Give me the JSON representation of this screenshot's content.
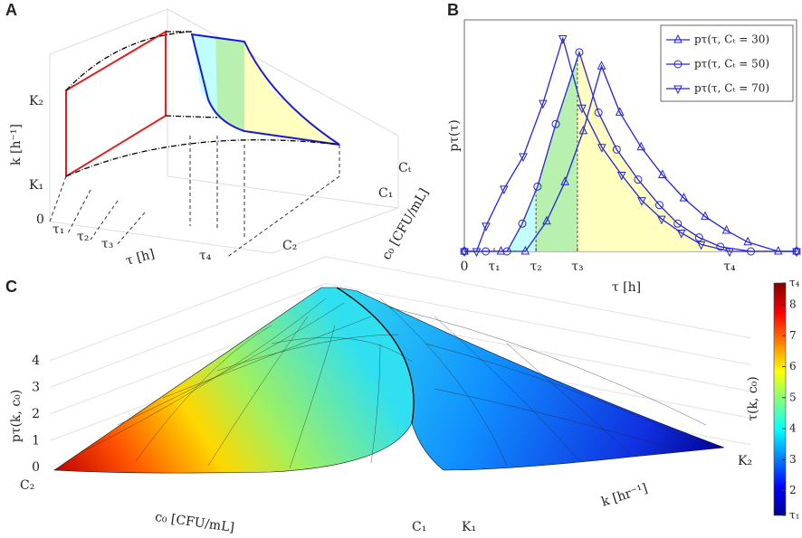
{
  "chart_data": [
    {
      "type": "diagram3d",
      "label": "A",
      "zlabel": "k [h⁻¹]",
      "ztick_labels": [
        "K₁",
        "K₂"
      ],
      "xlabel": "τ [h]",
      "xtick_labels": [
        "0",
        "τ₁",
        "τ₂",
        "τ₃",
        "τ₄"
      ],
      "ylabel": "c₀ [CFU/mL]",
      "ytick_labels": [
        "C₂",
        "C₁",
        "Cₜ"
      ]
    },
    {
      "type": "line",
      "label": "B",
      "ylabel": "pτ(τ)",
      "xlabel": "τ [h]",
      "xlim": [
        0,
        10.9
      ],
      "xticks": [
        0,
        {
          "value": 0.98,
          "label": "τ₁"
        },
        {
          "value": 2.35,
          "label": "τ₂"
        },
        {
          "value": 3.71,
          "label": "τ₃"
        },
        {
          "value": 8.7,
          "label": "τ₄"
        }
      ],
      "ylim": [
        0,
        1
      ],
      "legend": "upper right",
      "series": [
        {
          "name": "pτ(τ, Cₜ = 30)",
          "color": "#2424d8",
          "marker": "triangle-up",
          "x": [
            0,
            1.2,
            2.0,
            2.7,
            3.3,
            3.9,
            4.5,
            5.1,
            5.8,
            6.5,
            7.2,
            7.9,
            8.6,
            9.3,
            10.3,
            10.9
          ],
          "values": [
            0,
            0,
            0,
            0.13,
            0.3,
            0.52,
            0.8,
            0.6,
            0.45,
            0.33,
            0.23,
            0.15,
            0.09,
            0.04,
            0,
            0
          ]
        },
        {
          "name": "pτ(τ, Cₜ = 50)",
          "color": "#2424d8",
          "marker": "circle",
          "x": [
            0,
            0.7,
            1.4,
            1.9,
            2.4,
            3.0,
            3.77,
            4.4,
            5.0,
            5.7,
            6.4,
            7.0,
            7.7,
            8.4,
            9.4,
            10.9
          ],
          "values": [
            0,
            0,
            0,
            0.12,
            0.28,
            0.55,
            0.86,
            0.6,
            0.44,
            0.31,
            0.2,
            0.12,
            0.06,
            0.02,
            0,
            0
          ]
        },
        {
          "name": "pτ(τ, Cₜ = 70)",
          "color": "#2424d8",
          "marker": "triangle-down",
          "x": [
            0,
            0.4,
            0.71,
            1.3,
            1.93,
            2.58,
            3.23,
            3.86,
            4.51,
            5.16,
            5.82,
            6.47,
            7.12,
            7.77,
            8.7,
            10.9
          ],
          "values": [
            0,
            0,
            0.11,
            0.27,
            0.41,
            0.64,
            0.92,
            0.62,
            0.45,
            0.33,
            0.22,
            0.14,
            0.08,
            0.03,
            0,
            0
          ]
        }
      ]
    },
    {
      "type": "surface",
      "label": "C",
      "zlabel": "pτ(k, c₀)",
      "zlim": [
        0,
        4
      ],
      "zticks": [
        0,
        1,
        2,
        3,
        4
      ],
      "xlabel": "c₀ [CFU/mL]",
      "xtick_labels": [
        "C₂",
        "C₁"
      ],
      "ylabel": "k [hr⁻¹]",
      "ytick_labels": [
        "K₁",
        "K₂"
      ],
      "colorbar": {
        "label": "τ(k, c₀)",
        "lim": [
          1.2,
          8.7
        ],
        "ticks": [
          {
            "value": 1.2,
            "label": "τ₁"
          },
          2,
          3,
          4,
          5,
          6,
          7,
          8,
          {
            "value": 8.7,
            "label": "τ₄"
          }
        ]
      }
    }
  ]
}
